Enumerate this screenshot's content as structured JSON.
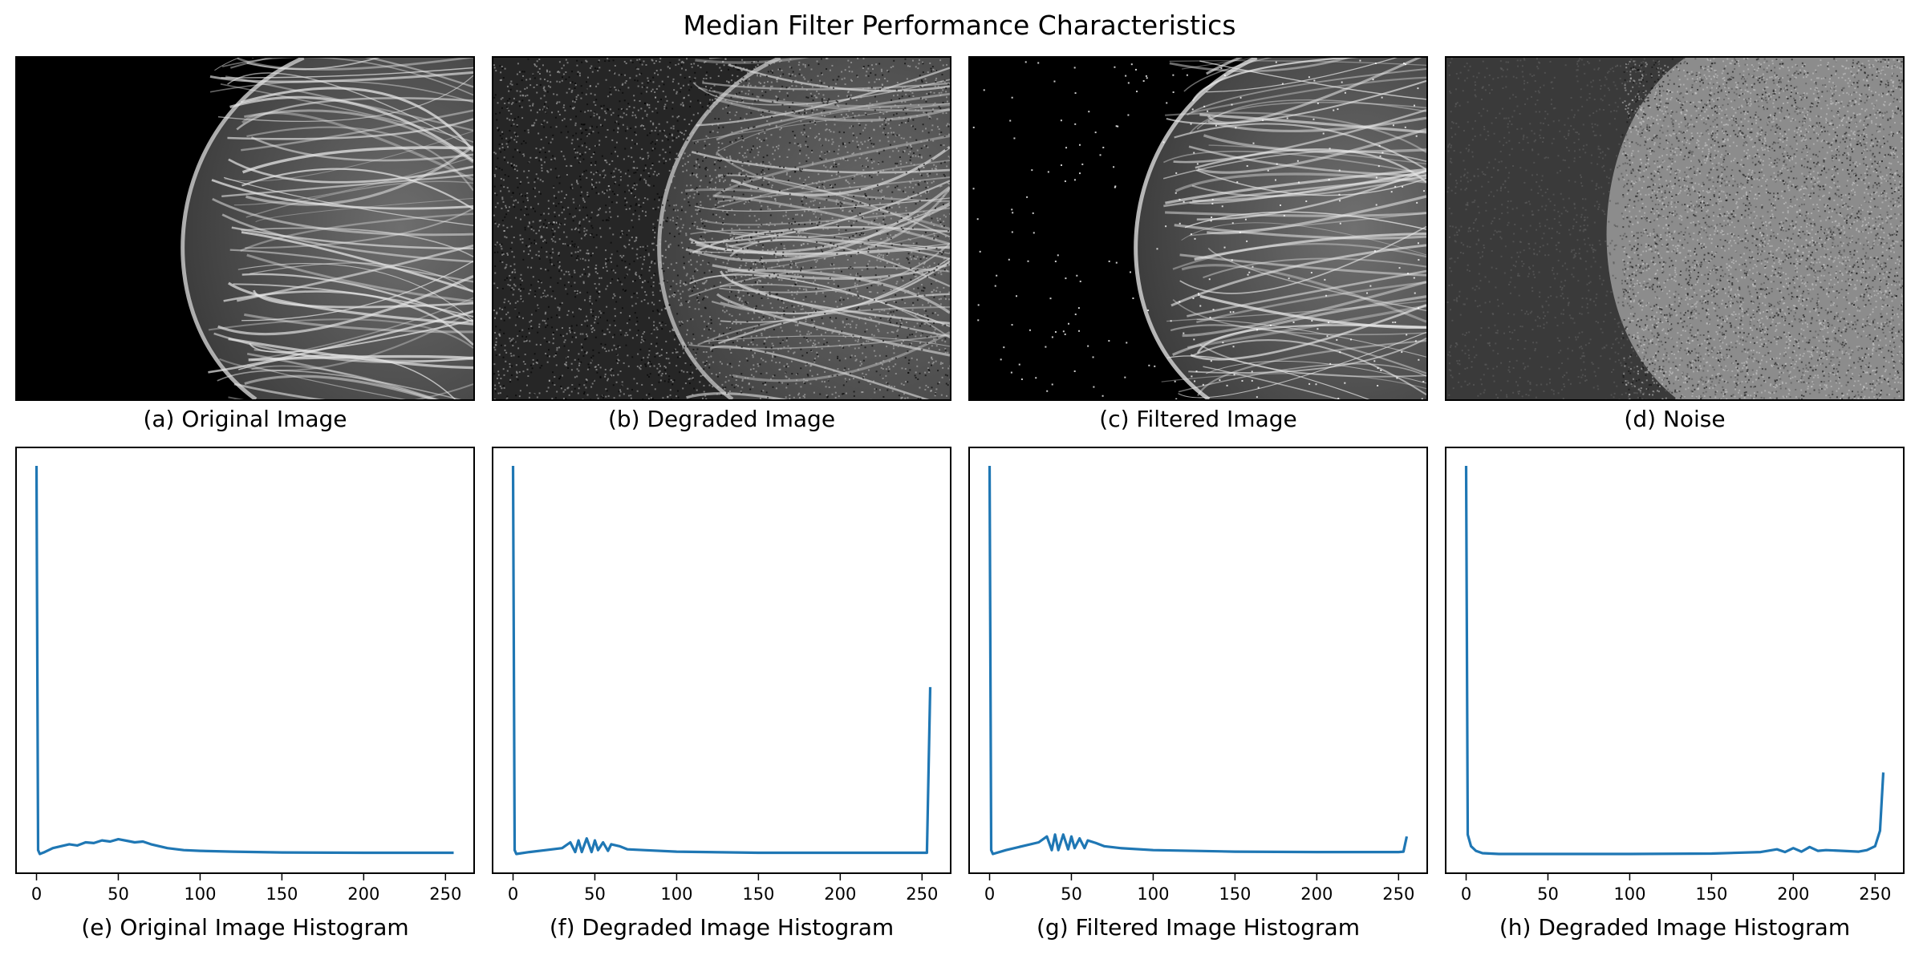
{
  "figure": {
    "title": "Median Filter Performance Characteristics"
  },
  "images": [
    {
      "caption": "(a) Original Image",
      "kind": "original"
    },
    {
      "caption": "(b) Degraded Image",
      "kind": "degraded"
    },
    {
      "caption": "(c) Filtered Image",
      "kind": "filtered"
    },
    {
      "caption": "(d) Noise",
      "kind": "noise"
    }
  ],
  "colors": {
    "line": "#1f77b4"
  },
  "chart_data": [
    {
      "type": "line",
      "title": "",
      "xlabel": "(e) Original Image Histogram",
      "ylabel": "",
      "xlim": [
        -13,
        268
      ],
      "ylim": [
        0,
        1
      ],
      "xticks": [
        0,
        50,
        100,
        150,
        200,
        250
      ],
      "grid": false,
      "series": [
        {
          "x": [
            0,
            1,
            2,
            5,
            10,
            15,
            20,
            25,
            30,
            35,
            40,
            45,
            50,
            55,
            60,
            65,
            70,
            75,
            80,
            90,
            100,
            120,
            150,
            200,
            255
          ],
          "y": [
            1.0,
            0.01,
            0.0,
            0.005,
            0.015,
            0.02,
            0.025,
            0.022,
            0.03,
            0.028,
            0.035,
            0.032,
            0.038,
            0.034,
            0.03,
            0.032,
            0.025,
            0.02,
            0.015,
            0.01,
            0.008,
            0.006,
            0.004,
            0.003,
            0.003
          ]
        }
      ]
    },
    {
      "type": "line",
      "title": "",
      "xlabel": "(f) Degraded Image Histogram",
      "ylabel": "",
      "xlim": [
        -13,
        268
      ],
      "ylim": [
        0,
        1
      ],
      "xticks": [
        0,
        50,
        100,
        150,
        200,
        250
      ],
      "grid": false,
      "series": [
        {
          "x": [
            0,
            1,
            2,
            10,
            20,
            30,
            35,
            38,
            40,
            42,
            45,
            48,
            50,
            52,
            55,
            58,
            60,
            65,
            70,
            80,
            100,
            150,
            200,
            250,
            253,
            255
          ],
          "y": [
            1.0,
            0.01,
            0.0,
            0.005,
            0.01,
            0.015,
            0.03,
            0.005,
            0.035,
            0.005,
            0.04,
            0.005,
            0.035,
            0.01,
            0.03,
            0.008,
            0.025,
            0.02,
            0.012,
            0.01,
            0.006,
            0.003,
            0.003,
            0.003,
            0.003,
            0.43
          ]
        }
      ]
    },
    {
      "type": "line",
      "title": "",
      "xlabel": "(g) Filtered Image Histogram",
      "ylabel": "",
      "xlim": [
        -13,
        268
      ],
      "ylim": [
        0,
        1
      ],
      "xticks": [
        0,
        50,
        100,
        150,
        200,
        250
      ],
      "grid": false,
      "series": [
        {
          "x": [
            0,
            1,
            2,
            10,
            20,
            30,
            35,
            38,
            40,
            42,
            45,
            48,
            50,
            52,
            55,
            58,
            60,
            65,
            70,
            80,
            100,
            150,
            200,
            250,
            253,
            255
          ],
          "y": [
            1.0,
            0.01,
            0.0,
            0.01,
            0.02,
            0.03,
            0.045,
            0.01,
            0.05,
            0.01,
            0.05,
            0.012,
            0.045,
            0.015,
            0.04,
            0.015,
            0.035,
            0.028,
            0.02,
            0.015,
            0.01,
            0.006,
            0.005,
            0.005,
            0.006,
            0.045
          ]
        }
      ]
    },
    {
      "type": "line",
      "title": "",
      "xlabel": "(h) Degraded Image Histogram",
      "ylabel": "",
      "xlim": [
        -13,
        268
      ],
      "ylim": [
        0,
        1
      ],
      "xticks": [
        0,
        50,
        100,
        150,
        200,
        250
      ],
      "grid": false,
      "series": [
        {
          "x": [
            0,
            1,
            3,
            6,
            10,
            20,
            50,
            100,
            150,
            180,
            190,
            195,
            200,
            205,
            210,
            215,
            220,
            230,
            240,
            245,
            250,
            253,
            255
          ],
          "y": [
            1.0,
            0.05,
            0.02,
            0.008,
            0.002,
            0.0,
            0.0,
            0.0,
            0.001,
            0.005,
            0.012,
            0.005,
            0.015,
            0.006,
            0.018,
            0.008,
            0.01,
            0.008,
            0.006,
            0.01,
            0.02,
            0.06,
            0.21
          ]
        }
      ]
    }
  ]
}
